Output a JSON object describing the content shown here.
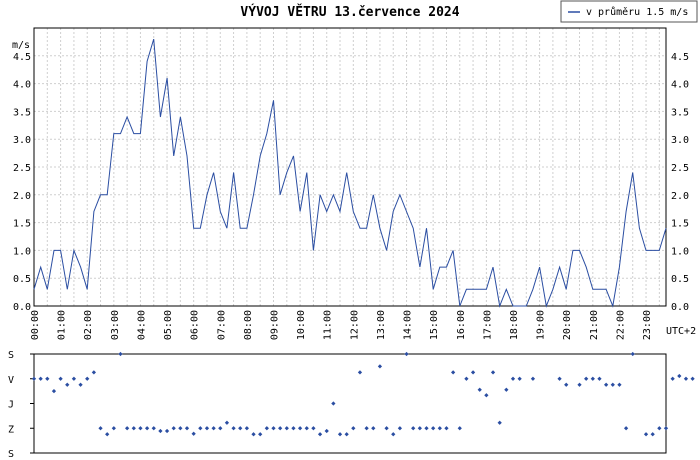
{
  "chart_data": [
    {
      "type": "line",
      "title": "VÝVOJ VĚTRU  13.července 2024",
      "ylabel": "m/s",
      "ylim": [
        0,
        5.0
      ],
      "yticks": [
        "0.0",
        "0.5",
        "1.0",
        "1.5",
        "2.0",
        "2.5",
        "3.0",
        "3.5",
        "4.0",
        "4.5"
      ],
      "xlabel": "UTC+2",
      "x_tick_labels": [
        "00:00",
        "01:00",
        "02:00",
        "03:00",
        "04:00",
        "05:00",
        "06:00",
        "07:00",
        "08:00",
        "09:00",
        "10:00",
        "11:00",
        "12:00",
        "13:00",
        "14:00",
        "15:00",
        "16:00",
        "17:00",
        "18:00",
        "19:00",
        "20:00",
        "21:00",
        "22:00",
        "23:00"
      ],
      "grid": true,
      "legend_position": "top-right",
      "series": [
        {
          "name": "v průměru 1.5 m/s",
          "color": "#2b4ea2",
          "values": [
            0.3,
            0.7,
            0.3,
            1.0,
            1.0,
            0.3,
            1.0,
            0.7,
            0.3,
            1.7,
            2.0,
            2.0,
            3.1,
            3.1,
            3.4,
            3.1,
            3.1,
            4.4,
            4.8,
            3.4,
            4.1,
            2.7,
            3.4,
            2.7,
            1.4,
            1.4,
            2.0,
            2.4,
            1.7,
            1.4,
            2.4,
            1.4,
            1.4,
            2.0,
            2.7,
            3.1,
            3.7,
            2.0,
            2.4,
            2.7,
            1.7,
            2.4,
            1.0,
            2.0,
            1.7,
            2.0,
            1.7,
            2.4,
            1.7,
            1.4,
            1.4,
            2.0,
            1.4,
            1.0,
            1.7,
            2.0,
            1.7,
            1.4,
            0.7,
            1.4,
            0.3,
            0.7,
            0.7,
            1.0,
            0.0,
            0.3,
            0.3,
            0.3,
            0.3,
            0.7,
            0.0,
            0.3,
            0.0,
            0.0,
            0.0,
            0.3,
            0.7,
            0.0,
            0.3,
            0.7,
            0.3,
            1.0,
            1.0,
            0.7,
            0.3,
            0.3,
            0.3,
            0.0,
            0.7,
            1.7,
            2.4,
            1.4,
            1.0,
            1.0,
            1.0,
            1.4
          ]
        }
      ]
    },
    {
      "type": "scatter",
      "title": "",
      "ylabel": "",
      "y_categories": [
        "S",
        "V",
        "J",
        "Z",
        "S"
      ],
      "ylim": [
        0,
        360
      ],
      "marker_color": "#2b4ea2",
      "points": [
        [
          0,
          90
        ],
        [
          2,
          90
        ],
        [
          4,
          90
        ],
        [
          6,
          135
        ],
        [
          8,
          90
        ],
        [
          10,
          112
        ],
        [
          12,
          90
        ],
        [
          14,
          112
        ],
        [
          16,
          90
        ],
        [
          18,
          67
        ],
        [
          20,
          270
        ],
        [
          22,
          292
        ],
        [
          24,
          270
        ],
        [
          26,
          0
        ],
        [
          28,
          270
        ],
        [
          30,
          270
        ],
        [
          32,
          270
        ],
        [
          34,
          270
        ],
        [
          36,
          270
        ],
        [
          38,
          280
        ],
        [
          40,
          280
        ],
        [
          42,
          270
        ],
        [
          44,
          270
        ],
        [
          46,
          270
        ],
        [
          48,
          290
        ],
        [
          50,
          270
        ],
        [
          52,
          270
        ],
        [
          54,
          270
        ],
        [
          56,
          270
        ],
        [
          58,
          250
        ],
        [
          60,
          270
        ],
        [
          62,
          270
        ],
        [
          64,
          270
        ],
        [
          66,
          292
        ],
        [
          68,
          292
        ],
        [
          70,
          270
        ],
        [
          72,
          270
        ],
        [
          74,
          270
        ],
        [
          76,
          270
        ],
        [
          78,
          270
        ],
        [
          80,
          270
        ],
        [
          82,
          270
        ],
        [
          84,
          270
        ],
        [
          86,
          292
        ],
        [
          88,
          280
        ],
        [
          90,
          180
        ],
        [
          92,
          292
        ],
        [
          94,
          292
        ],
        [
          96,
          270
        ],
        [
          98,
          67
        ],
        [
          100,
          270
        ],
        [
          102,
          270
        ],
        [
          104,
          45
        ],
        [
          106,
          270
        ],
        [
          108,
          292
        ],
        [
          110,
          270
        ],
        [
          112,
          0
        ],
        [
          114,
          270
        ],
        [
          116,
          270
        ],
        [
          118,
          270
        ],
        [
          120,
          270
        ],
        [
          122,
          270
        ],
        [
          124,
          270
        ],
        [
          126,
          67
        ],
        [
          128,
          270
        ],
        [
          130,
          90
        ],
        [
          132,
          67
        ],
        [
          134,
          130
        ],
        [
          136,
          150
        ],
        [
          138,
          67
        ],
        [
          140,
          250
        ],
        [
          142,
          130
        ],
        [
          144,
          90
        ],
        [
          146,
          90
        ],
        [
          150,
          90
        ],
        [
          158,
          90
        ],
        [
          160,
          112
        ],
        [
          164,
          112
        ],
        [
          166,
          90
        ],
        [
          168,
          90
        ],
        [
          170,
          90
        ],
        [
          172,
          112
        ],
        [
          174,
          112
        ],
        [
          176,
          112
        ],
        [
          178,
          270
        ],
        [
          180,
          0
        ],
        [
          184,
          292
        ],
        [
          186,
          292
        ],
        [
          188,
          270
        ],
        [
          190,
          270
        ],
        [
          192,
          90
        ],
        [
          194,
          80
        ],
        [
          196,
          90
        ],
        [
          198,
          90
        ]
      ]
    }
  ],
  "legend_label": "v průměru 1.5 m/s"
}
